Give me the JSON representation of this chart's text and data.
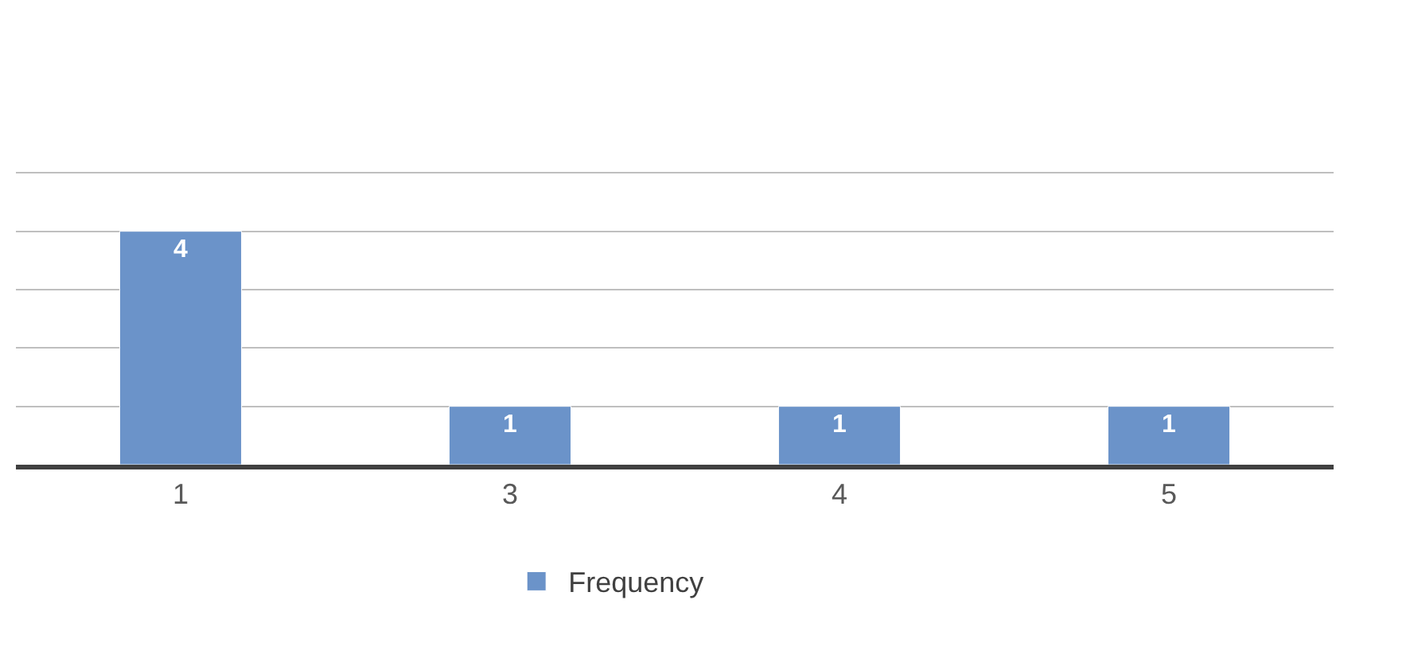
{
  "chart_data": {
    "type": "bar",
    "categories": [
      "1",
      "3",
      "4",
      "5"
    ],
    "series": [
      {
        "name": "Frequency",
        "color": "#6b93c9",
        "values": [
          4,
          1,
          1,
          1
        ]
      }
    ],
    "yticks": [
      {
        "value": 0,
        "label": null
      },
      {
        "value": 1,
        "label": null
      },
      {
        "value": 2,
        "label": null
      },
      {
        "value": 3,
        "label": null
      },
      {
        "value": 4,
        "label": null
      },
      {
        "value": 5,
        "label": null
      }
    ],
    "grid": "y",
    "legend": "bottom",
    "data_labels": true,
    "tick_labels": "x"
  }
}
